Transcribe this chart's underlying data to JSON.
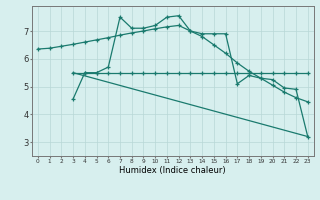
{
  "xlabel": "Humidex (Indice chaleur)",
  "background_color": "#d7efee",
  "grid_color": "#b8d8d6",
  "line_color": "#1a7a6e",
  "xlim": [
    -0.5,
    23.5
  ],
  "ylim": [
    2.5,
    7.9
  ],
  "x_ticks": [
    0,
    1,
    2,
    3,
    4,
    5,
    6,
    7,
    8,
    9,
    10,
    11,
    12,
    13,
    14,
    15,
    16,
    17,
    18,
    19,
    20,
    21,
    22,
    23
  ],
  "y_ticks": [
    3,
    4,
    5,
    6,
    7
  ],
  "series": [
    {
      "x": [
        0,
        1,
        2,
        3,
        4,
        5,
        6,
        7,
        8,
        9,
        10,
        11,
        12,
        13,
        14,
        15,
        16,
        17,
        18,
        19,
        20,
        21,
        22,
        23
      ],
      "y": [
        6.35,
        6.38,
        6.45,
        6.52,
        6.6,
        6.68,
        6.76,
        6.85,
        6.93,
        7.0,
        7.08,
        7.15,
        7.2,
        7.0,
        6.8,
        6.5,
        6.2,
        5.85,
        5.55,
        5.3,
        5.05,
        4.8,
        4.6,
        4.45
      ],
      "marker": true
    },
    {
      "x": [
        3,
        4,
        5,
        6,
        7,
        8,
        9,
        10,
        11,
        12,
        13,
        14,
        15,
        16,
        17,
        18,
        19,
        20,
        21,
        22,
        23
      ],
      "y": [
        4.55,
        5.5,
        5.5,
        5.7,
        7.5,
        7.1,
        7.1,
        7.2,
        7.5,
        7.55,
        7.0,
        6.9,
        6.9,
        6.9,
        5.1,
        5.4,
        5.3,
        5.25,
        4.95,
        4.9,
        3.2
      ],
      "marker": true
    },
    {
      "x": [
        3,
        4,
        5,
        6,
        7,
        8,
        9,
        10,
        11,
        12,
        13,
        14,
        15,
        16,
        17,
        18,
        19,
        20,
        21,
        22,
        23
      ],
      "y": [
        5.5,
        5.5,
        5.5,
        5.5,
        5.5,
        5.5,
        5.5,
        5.5,
        5.5,
        5.5,
        5.5,
        5.5,
        5.5,
        5.5,
        5.5,
        5.5,
        5.5,
        5.5,
        5.5,
        5.5,
        5.5
      ],
      "marker": true
    },
    {
      "x": [
        3,
        23
      ],
      "y": [
        5.5,
        3.2
      ],
      "marker": false
    }
  ]
}
